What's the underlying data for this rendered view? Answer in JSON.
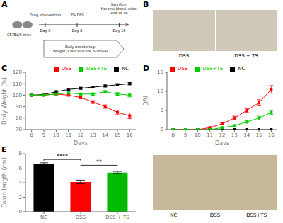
{
  "chart_data": [
    {
      "type": "diagram",
      "title": "A",
      "annotations": [
        "C57BL/6 mice",
        "Day 0",
        "Day 8",
        "Day 16",
        "Drug intervention",
        "2% DSS",
        "Sacrifice:\nHarvest blood, colon\nand so on",
        "Daily monitoring:\nWeight, Clinical score, Survival"
      ]
    },
    {
      "type": "image",
      "title": "B",
      "categories": [
        "DSS",
        "DSS + TS"
      ],
      "color": "#d0c8b8"
    },
    {
      "type": "line",
      "title": "C",
      "x": [
        8,
        9,
        10,
        11,
        12,
        13,
        14,
        15,
        16
      ],
      "xlim": [
        7.5,
        16.5
      ],
      "xticks": [
        8,
        9,
        10,
        11,
        12,
        13,
        14,
        15,
        16
      ],
      "ylim": [
        70,
        120
      ],
      "yticks": [
        70,
        80,
        90,
        100,
        110,
        120
      ],
      "xlabel": "Days",
      "ylabel": "Body Weight (%)",
      "legend": "upper right",
      "grid": false,
      "series": [
        {
          "name": "NC",
          "color": "#000000",
          "marker": "square",
          "values": [
            100,
            100.5,
            103,
            105,
            106,
            107,
            108,
            109,
            110
          ],
          "errors": [
            0.5,
            0.5,
            0.8,
            0.8,
            0.8,
            0.8,
            0.8,
            1.0,
            1.0
          ]
        },
        {
          "name": "DSS",
          "color": "#FF0000",
          "marker": "square",
          "values": [
            100,
            100,
            101,
            100,
            98,
            94,
            90,
            85,
            82
          ],
          "errors": [
            0.5,
            0.5,
            0.8,
            0.8,
            1.0,
            1.2,
            1.5,
            2.0,
            2.5
          ]
        },
        {
          "name": "DSS+TS",
          "color": "#00CC00",
          "marker": "square",
          "values": [
            100,
            100,
            101,
            102,
            101,
            101,
            103,
            101,
            100
          ],
          "errors": [
            0.5,
            0.5,
            0.8,
            0.8,
            0.8,
            1.0,
            1.0,
            1.2,
            1.5
          ]
        }
      ]
    },
    {
      "type": "line",
      "title": "D",
      "x": [
        8,
        9,
        10,
        11,
        12,
        13,
        14,
        15,
        16
      ],
      "xlim": [
        7.5,
        16.5
      ],
      "xticks": [
        8,
        9,
        10,
        11,
        12,
        13,
        14,
        15,
        16
      ],
      "ylim": [
        0,
        15
      ],
      "yticks": [
        0,
        5,
        10,
        15
      ],
      "xlabel": "Days",
      "ylabel": "DAI",
      "legend": "upper left",
      "grid": false,
      "series": [
        {
          "name": "NC",
          "color": "#000000",
          "marker": "square",
          "values": [
            0,
            0,
            0,
            0,
            0,
            0,
            0,
            0,
            0
          ],
          "errors": [
            0,
            0,
            0,
            0,
            0,
            0,
            0,
            0,
            0
          ]
        },
        {
          "name": "DSS",
          "color": "#FF0000",
          "marker": "square",
          "values": [
            0,
            0,
            0,
            0.5,
            1.5,
            3,
            5,
            7,
            10.5
          ],
          "errors": [
            0,
            0,
            0,
            0.2,
            0.3,
            0.5,
            0.5,
            0.8,
            1.0
          ]
        },
        {
          "name": "DSS+TS",
          "color": "#00CC00",
          "marker": "square",
          "values": [
            0,
            0,
            0,
            0,
            0.5,
            1,
            2,
            3,
            4.5
          ],
          "errors": [
            0,
            0,
            0,
            0,
            0.2,
            0.3,
            0.3,
            0.5,
            0.5
          ]
        }
      ]
    },
    {
      "type": "bar",
      "title": "E",
      "categories": [
        "NC",
        "DSS",
        "DSS + TS"
      ],
      "values": [
        6.6,
        4.1,
        5.4
      ],
      "errors": [
        0.15,
        0.25,
        0.15
      ],
      "colors": [
        "#000000",
        "#FF0000",
        "#00BB00"
      ],
      "ylim": [
        0,
        8
      ],
      "yticks": [
        0,
        2,
        4,
        6,
        8
      ],
      "ylabel": "Colon length (cm)",
      "grid": false,
      "annotations": [
        {
          "text": "****",
          "x": [
            "NC",
            "DSS"
          ],
          "y": 7.2
        },
        {
          "text": "**",
          "x": [
            "DSS",
            "DSS + TS"
          ],
          "y": 6.4
        }
      ]
    },
    {
      "type": "image",
      "categories": [
        "NC",
        "DSS",
        "DSS+TS"
      ],
      "color": "#c8b89a"
    }
  ]
}
